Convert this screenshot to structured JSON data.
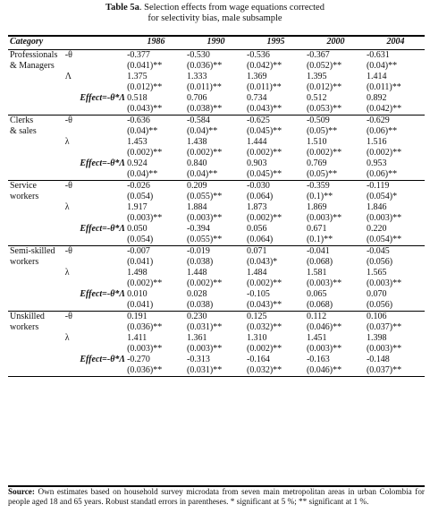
{
  "title": {
    "line1_bold": "Table 5a",
    "line1_rest": ". Selection effects from wage equations corrected",
    "line2": "for selectivity bias, male subsample"
  },
  "header": {
    "category": "Category",
    "years": [
      "1986",
      "1990",
      "1995",
      "2000",
      "2004"
    ]
  },
  "groups": [
    {
      "name_lines": [
        "Professionals",
        "& Managers"
      ],
      "rows": [
        {
          "label": "-θ",
          "values": [
            "-0.377",
            "-0.530",
            "-0.536",
            "-0.367",
            "-0.631"
          ],
          "errors": [
            "(0.041)**",
            "(0.036)**",
            "(0.042)**",
            "(0.052)**",
            "(0.04)**"
          ]
        },
        {
          "label": "Λ",
          "values": [
            "1.375",
            "1.333",
            "1.369",
            "1.395",
            "1.414"
          ],
          "errors": [
            "(0.012)**",
            "(0.011)**",
            "(0.011)**",
            "(0.012)**",
            "(0.011)**"
          ]
        },
        {
          "label": "Effect=-θ*Λ",
          "effect": true,
          "values": [
            "0.518",
            "0.706",
            "0.734",
            "0.512",
            "0.892"
          ],
          "errors": [
            "(0.043)**",
            "(0.038)**",
            "(0.043)**",
            "(0.053)**",
            "(0.042)**"
          ]
        }
      ]
    },
    {
      "name_lines": [
        "Clerks",
        "& sales"
      ],
      "rows": [
        {
          "label": "-θ",
          "values": [
            "-0.636",
            "-0.584",
            "-0.625",
            "-0.509",
            "-0.629"
          ],
          "errors": [
            "(0.04)**",
            "(0.04)**",
            "(0.045)**",
            "(0.05)**",
            "(0.06)**"
          ]
        },
        {
          "label": "λ",
          "values": [
            "1.453",
            "1.438",
            "1.444",
            "1.510",
            "1.516"
          ],
          "errors": [
            "(0.002)**",
            "(0.002)**",
            "(0.002)**",
            "(0.002)**",
            "(0.002)**"
          ]
        },
        {
          "label": "Effect=-θ*Λ",
          "effect": true,
          "values": [
            "0.924",
            "0.840",
            "0.903",
            "0.769",
            "0.953"
          ],
          "errors": [
            "(0.04)**",
            "(0.04)**",
            "(0.045)**",
            "(0.05)**",
            "(0.06)**"
          ]
        }
      ]
    },
    {
      "name_lines": [
        "Service",
        "workers"
      ],
      "rows": [
        {
          "label": "-θ",
          "values": [
            "-0.026",
            "0.209",
            "-0.030",
            "-0.359",
            "-0.119"
          ],
          "errors": [
            "(0.054)",
            "(0.055)**",
            "(0.064)",
            "(0.1)**",
            "(0.054)*"
          ]
        },
        {
          "label": "λ",
          "values": [
            "1.917",
            "1.884",
            "1.873",
            "1.869",
            "1.846"
          ],
          "errors": [
            "(0.003)**",
            "(0.003)**",
            "(0.002)**",
            "(0.003)**",
            "(0.003)**"
          ]
        },
        {
          "label": "Effect=-θ*Λ",
          "effect": true,
          "values": [
            "0.050",
            "-0.394",
            "0.056",
            "0.671",
            "0.220"
          ],
          "errors": [
            "(0.054)",
            "(0.055)**",
            "(0.064)",
            "(0.1)**",
            "(0.054)**"
          ]
        }
      ]
    },
    {
      "name_lines": [
        "Semi-skilled",
        "workers"
      ],
      "rows": [
        {
          "label": "-θ",
          "values": [
            "-0.007",
            "-0.019",
            "0.071",
            "-0.041",
            "-0.045"
          ],
          "errors": [
            "(0.041)",
            "(0.038)",
            "(0.043)*",
            "(0.068)",
            "(0.056)"
          ]
        },
        {
          "label": "λ",
          "values": [
            "1.498",
            "1.448",
            "1.484",
            "1.581",
            "1.565"
          ],
          "errors": [
            "(0.002)**",
            "(0.002)**",
            "(0.002)**",
            "(0.003)**",
            "(0.003)**"
          ]
        },
        {
          "label": "Effect=-θ*Λ",
          "effect": true,
          "values": [
            "0.010",
            "0.028",
            "-0.105",
            "0.065",
            "0.070"
          ],
          "errors": [
            "(0.041)",
            "(0.038)",
            "(0.043)**",
            "(0.068)",
            "(0.056)"
          ]
        }
      ]
    },
    {
      "name_lines": [
        "Unskilled",
        "workers"
      ],
      "rows": [
        {
          "label": "-θ",
          "values": [
            "0.191",
            "0.230",
            "0.125",
            "0.112",
            "0.106"
          ],
          "errors": [
            "(0.036)**",
            "(0.031)**",
            "(0.032)**",
            "(0.046)**",
            "(0.037)**"
          ]
        },
        {
          "label": "λ",
          "values": [
            "1.411",
            "1.361",
            "1.310",
            "1.451",
            "1.398"
          ],
          "errors": [
            "(0.003)**",
            "(0.003)**",
            "(0.002)**",
            "(0.003)**",
            "(0.003)**"
          ]
        },
        {
          "label": "Effect=-θ*Λ",
          "effect": true,
          "values": [
            "-0.270",
            "-0.313",
            "-0.164",
            "-0.163",
            "-0.148"
          ],
          "errors": [
            "(0.036)**",
            "(0.031)**",
            "(0.032)**",
            "(0.046)**",
            "(0.037)**"
          ]
        }
      ]
    }
  ],
  "source": {
    "label": "Source:",
    "text": " Own estimates based on household survey microdata from seven main metropolitan areas in urban Colombia for people aged 18 and 65 years. Robust standatl errors in parentheses. * significant at 5 %; ** significant at 1 %."
  }
}
